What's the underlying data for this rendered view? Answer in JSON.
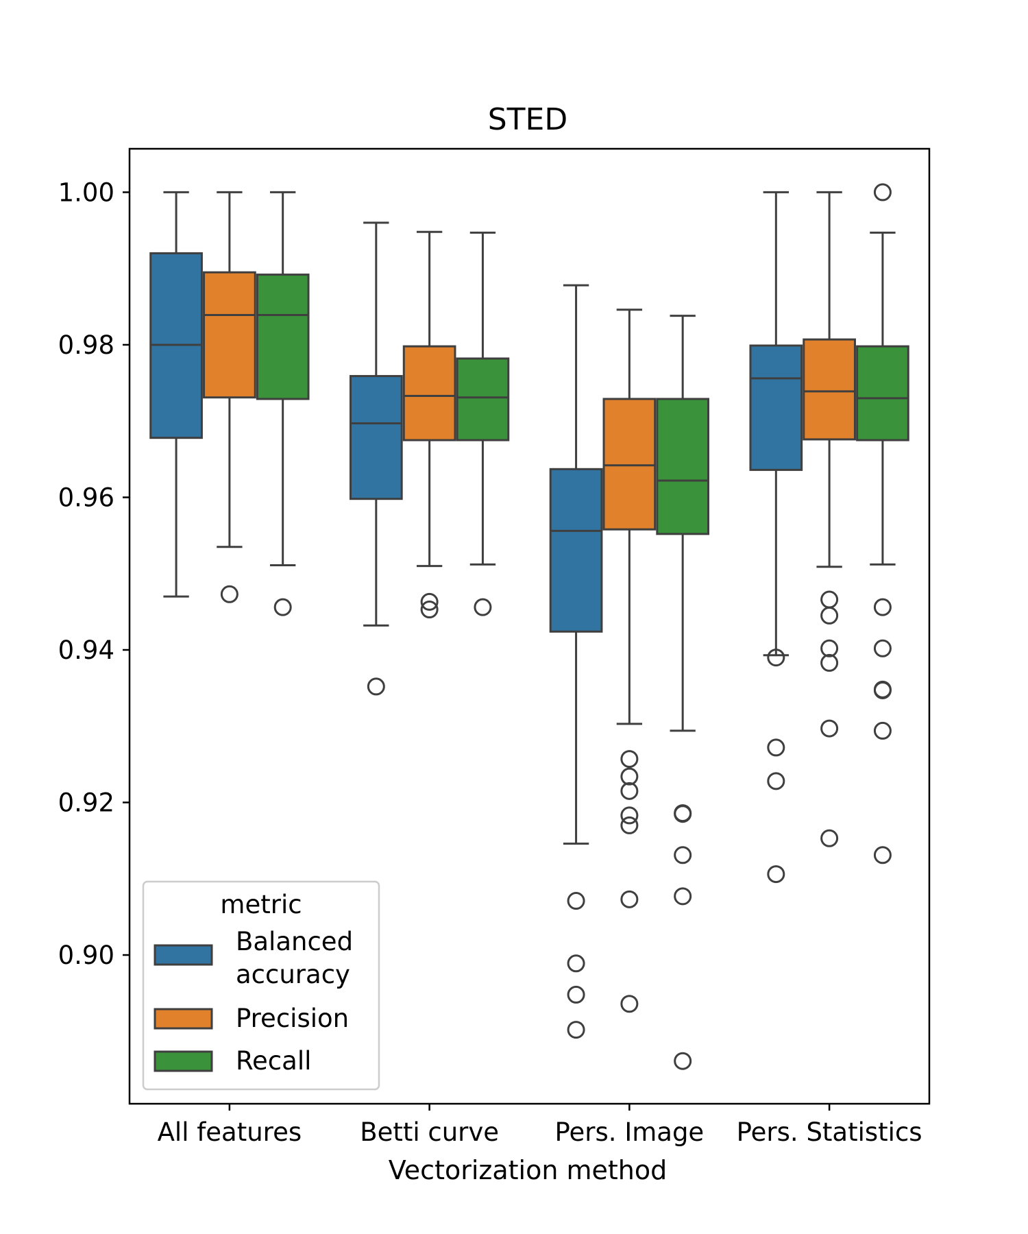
{
  "chart_data": {
    "type": "box",
    "title": "STED",
    "xlabel": "Vectorization method",
    "ylabel": "",
    "categories": [
      "All features",
      "Betti curve",
      "Pers. Image",
      "Pers. Statistics"
    ],
    "ylim": [
      0.8805,
      1.0057
    ],
    "yticks": [
      "0.90",
      "0.92",
      "0.94",
      "0.96",
      "0.98",
      "1.00"
    ],
    "grid": false,
    "legend": {
      "title": "metric",
      "placement": "lower-left",
      "entries": [
        {
          "label_lines": [
            "Balanced",
            "accuracy"
          ],
          "color": "#3274a1"
        },
        {
          "label_lines": [
            "Precision"
          ],
          "color": "#e1812c"
        },
        {
          "label_lines": [
            "Recall"
          ],
          "color": "#3a923a"
        }
      ]
    },
    "series": [
      {
        "name": "Balanced accuracy",
        "color": "#3274a1",
        "boxes": [
          {
            "whislo": 0.947,
            "q1": 0.9678,
            "med": 0.98,
            "q3": 0.992,
            "whishi": 1.0,
            "fliers": []
          },
          {
            "whislo": 0.9432,
            "q1": 0.9598,
            "med": 0.9697,
            "q3": 0.9759,
            "whishi": 0.996,
            "fliers": [
              0.9352
            ]
          },
          {
            "whislo": 0.9146,
            "q1": 0.9424,
            "med": 0.9556,
            "q3": 0.9637,
            "whishi": 0.9878,
            "fliers": [
              0.9071,
              0.8989,
              0.8948,
              0.8902
            ]
          },
          {
            "whislo": 0.9393,
            "q1": 0.9636,
            "med": 0.9756,
            "q3": 0.9799,
            "whishi": 1.0,
            "fliers": [
              0.939,
              0.9272,
              0.9228,
              0.9106
            ]
          }
        ]
      },
      {
        "name": "Precision",
        "color": "#e1812c",
        "boxes": [
          {
            "whislo": 0.9535,
            "q1": 0.9731,
            "med": 0.9839,
            "q3": 0.9895,
            "whishi": 1.0,
            "fliers": [
              0.9473
            ]
          },
          {
            "whislo": 0.951,
            "q1": 0.9675,
            "med": 0.9733,
            "q3": 0.9798,
            "whishi": 0.9948,
            "fliers": [
              0.9463,
              0.9453
            ]
          },
          {
            "whislo": 0.9303,
            "q1": 0.9558,
            "med": 0.9642,
            "q3": 0.9729,
            "whishi": 0.9846,
            "fliers": [
              0.9257,
              0.9234,
              0.9215,
              0.9183,
              0.917,
              0.9073,
              0.8936
            ]
          },
          {
            "whislo": 0.9509,
            "q1": 0.9676,
            "med": 0.9739,
            "q3": 0.9807,
            "whishi": 1.0,
            "fliers": [
              0.9466,
              0.9445,
              0.9402,
              0.9383,
              0.9297,
              0.9153
            ]
          }
        ]
      },
      {
        "name": "Recall",
        "color": "#3a923a",
        "boxes": [
          {
            "whislo": 0.9511,
            "q1": 0.9729,
            "med": 0.9839,
            "q3": 0.9892,
            "whishi": 1.0,
            "fliers": [
              0.9456
            ]
          },
          {
            "whislo": 0.9512,
            "q1": 0.9675,
            "med": 0.9731,
            "q3": 0.9782,
            "whishi": 0.9947,
            "fliers": [
              0.9456
            ]
          },
          {
            "whislo": 0.9294,
            "q1": 0.9552,
            "med": 0.9622,
            "q3": 0.9729,
            "whishi": 0.9838,
            "fliers": [
              0.9186,
              0.9185,
              0.9131,
              0.9077,
              0.8861
            ]
          },
          {
            "whislo": 0.9512,
            "q1": 0.9675,
            "med": 0.973,
            "q3": 0.9798,
            "whishi": 0.9947,
            "fliers": [
              0.9456,
              0.9402,
              0.9348,
              0.9347,
              0.9294,
              0.9131,
              1.0
            ]
          }
        ]
      }
    ]
  }
}
